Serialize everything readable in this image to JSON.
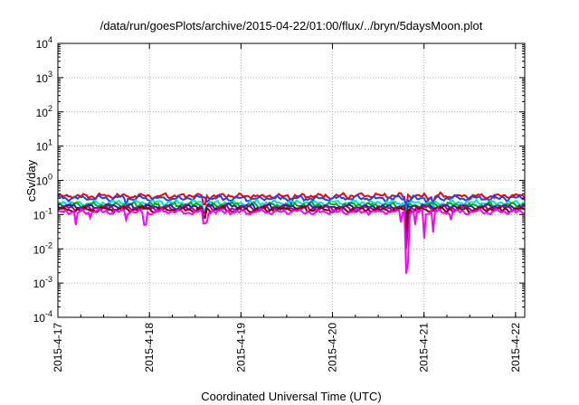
{
  "chart_data": {
    "type": "line",
    "title": "/data/run/goesPlots/archive/2015-04-22/01:00/flux/../bryn/5daysMoon.plot",
    "xlabel": "Coordinated Universal Time (UTC)",
    "ylabel": "cSv/day",
    "yscale": "log",
    "ylim": [
      0.0001,
      10000
    ],
    "xlim": [
      0,
      5.1
    ],
    "grid": true,
    "legend": "none",
    "y_ticks": [
      {
        "base": "10",
        "exp": "-4",
        "value": 0.0001
      },
      {
        "base": "10",
        "exp": "-3",
        "value": 0.001
      },
      {
        "base": "10",
        "exp": "-2",
        "value": 0.01
      },
      {
        "base": "10",
        "exp": "-1",
        "value": 0.1
      },
      {
        "base": "10",
        "exp": "0",
        "value": 1
      },
      {
        "base": "10",
        "exp": "1",
        "value": 10
      },
      {
        "base": "10",
        "exp": "2",
        "value": 100
      },
      {
        "base": "10",
        "exp": "3",
        "value": 1000
      },
      {
        "base": "10",
        "exp": "4",
        "value": 10000
      }
    ],
    "x_ticks": [
      {
        "label": "2015-4-17",
        "value": 0
      },
      {
        "label": "2015-4-18",
        "value": 1
      },
      {
        "label": "2015-4-19",
        "value": 2
      },
      {
        "label": "2015-4-20",
        "value": 3
      },
      {
        "label": "2015-4-21",
        "value": 4
      },
      {
        "label": "2015-4-22",
        "value": 5
      }
    ],
    "series": [
      {
        "color": "#ff0000",
        "base": 0.35,
        "dips": [
          [
            1.6,
            0.2
          ],
          [
            3.8,
            0.15
          ],
          [
            4.1,
            0.2
          ]
        ]
      },
      {
        "color": "#2040ff",
        "base": 0.3,
        "dips": [
          [
            0.75,
            0.18
          ],
          [
            2.55,
            0.2
          ],
          [
            3.8,
            0.12
          ],
          [
            4.1,
            0.18
          ]
        ]
      },
      {
        "color": "#00e0e0",
        "base": 0.22,
        "dips": [
          [
            1.6,
            0.14
          ],
          [
            3.8,
            0.1
          ],
          [
            4.1,
            0.14
          ]
        ]
      },
      {
        "color": "#00b000",
        "base": 0.19,
        "dips": [
          [
            1.6,
            0.12
          ],
          [
            3.8,
            0.08
          ]
        ]
      },
      {
        "color": "#1030a0",
        "base": 0.17,
        "dips": [
          [
            1.6,
            0.11
          ],
          [
            3.8,
            0.06
          ]
        ]
      },
      {
        "color": "#a000a0",
        "base": 0.155,
        "dips": [
          [
            1.6,
            0.09
          ],
          [
            3.8,
            0.01
          ],
          [
            3.82,
            0.05
          ]
        ]
      },
      {
        "color": "#800000",
        "base": 0.14,
        "dips": [
          [
            1.6,
            0.08
          ],
          [
            3.8,
            0.03
          ]
        ]
      },
      {
        "color": "#ff00ff",
        "base": 0.12,
        "dips": [
          [
            0.2,
            0.05
          ],
          [
            0.35,
            0.08
          ],
          [
            0.75,
            0.07
          ],
          [
            0.95,
            0.05
          ],
          [
            1.6,
            0.055
          ],
          [
            1.62,
            0.06
          ],
          [
            3.75,
            0.06
          ],
          [
            3.8,
            0.0019
          ],
          [
            3.82,
            0.004
          ],
          [
            3.9,
            0.05
          ],
          [
            4.0,
            0.02
          ],
          [
            4.1,
            0.03
          ],
          [
            4.3,
            0.07
          ]
        ]
      }
    ]
  }
}
